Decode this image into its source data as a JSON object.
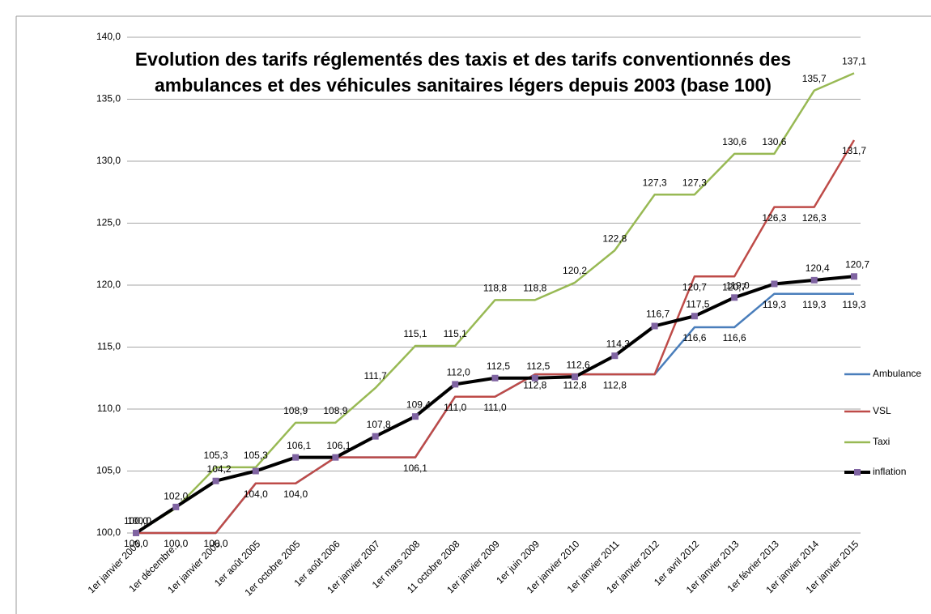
{
  "chart_data": {
    "type": "line",
    "title": [
      "Evolution des tarifs réglementés des taxis et des tarifs conventionnés des",
      "ambulances et des véhicules sanitaires légers depuis 2003 (base 100)"
    ],
    "categories": [
      "1er janvier 2003",
      "1er décembre...",
      "1er janvier 2005",
      "1er août 2005",
      "1er octobre 2005",
      "1er août 2006",
      "1er janvier 2007",
      "1er mars 2008",
      "11 octobre 2008",
      "1er janvier 2009",
      "1er juin 2009",
      "1er janvier 2010",
      "1er janvier 2011",
      "1er janvier 2012",
      "1er avril 2012",
      "1er janvier 2013",
      "1er février 2013",
      "1er janvier 2014",
      "1er janvier 2015"
    ],
    "ylim": [
      100,
      140
    ],
    "yticks": [
      {
        "value": 100,
        "label": "100,0"
      },
      {
        "value": 105,
        "label": "105,0"
      },
      {
        "value": 110,
        "label": "110,0"
      },
      {
        "value": 115,
        "label": "115,0"
      },
      {
        "value": 120,
        "label": "120,0"
      },
      {
        "value": 125,
        "label": "125,0"
      },
      {
        "value": 130,
        "label": "130,0"
      },
      {
        "value": 135,
        "label": "135,0"
      },
      {
        "value": 140,
        "label": "140,0"
      }
    ],
    "grid": true,
    "legend": "right",
    "series": [
      {
        "name": "Ambulance",
        "color": "#4a7ebb",
        "values": [
          100,
          100,
          100,
          104.0,
          104.0,
          106.1,
          106.1,
          106.1,
          111.0,
          111.0,
          112.8,
          112.8,
          112.8,
          112.8,
          116.6,
          116.6,
          119.3,
          119.3,
          119.3
        ],
        "value_labels": [
          null,
          null,
          null,
          null,
          null,
          null,
          null,
          null,
          null,
          null,
          null,
          null,
          null,
          null,
          "116,6",
          "116,6",
          "119,3",
          "119,3",
          "119,3"
        ]
      },
      {
        "name": "VSL",
        "color": "#be4b48",
        "values": [
          100,
          100,
          100,
          104.0,
          104.0,
          106.1,
          106.1,
          106.1,
          111.0,
          111.0,
          112.8,
          112.8,
          112.8,
          112.8,
          120.7,
          120.7,
          126.3,
          126.3,
          131.7
        ],
        "value_labels": [
          "100,0",
          "100,0",
          "100,0",
          "104,0",
          "104,0",
          null,
          null,
          "106,1",
          "111,0",
          "111,0",
          "112,8",
          "112,8",
          "112,8",
          null,
          "120,7",
          "120,7",
          "126,3",
          "126,3",
          "131,7"
        ]
      },
      {
        "name": "Taxi",
        "color": "#98b954",
        "values": [
          100,
          102.0,
          105.3,
          105.3,
          108.9,
          108.9,
          111.7,
          115.1,
          115.1,
          118.8,
          118.8,
          120.2,
          122.8,
          127.3,
          127.3,
          130.6,
          130.6,
          135.7,
          137.1
        ],
        "value_labels": [
          "100,0",
          "102,0",
          "105,3",
          "105,3",
          "108,9",
          "108,9",
          "111,7",
          "115,1",
          "115,1",
          "118,8",
          "118,8",
          "120,2",
          "122,8",
          "127,3",
          "127,3",
          "130,6",
          "130,6",
          "135,7",
          "137,1"
        ]
      },
      {
        "name": "inflation",
        "color": "#000000",
        "marker_color": "#8064a2",
        "values": [
          100.0,
          102.1,
          104.2,
          105.0,
          106.1,
          106.1,
          107.8,
          109.4,
          112.0,
          112.5,
          112.5,
          112.6,
          114.3,
          116.7,
          117.5,
          119.0,
          120.1,
          120.4,
          120.7
        ],
        "value_labels": [
          "100,0",
          null,
          "104,2",
          null,
          "106,1",
          "106,1",
          "107,8",
          "109,4",
          "112,0",
          "112,5",
          "112,5",
          "112,6",
          "114,3",
          "116,7",
          "117,5",
          "119,0",
          null,
          "120,4",
          "120,7"
        ]
      }
    ]
  }
}
